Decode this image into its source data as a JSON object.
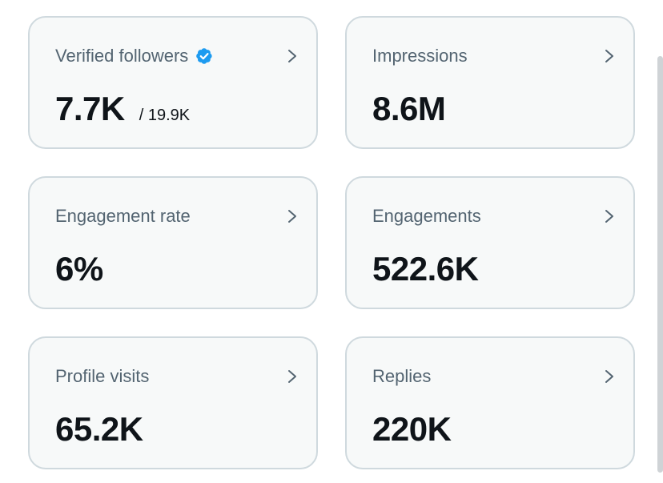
{
  "cards": [
    {
      "label": "Verified followers",
      "value": "7.7K",
      "subvalue": "/ 19.9K",
      "verified_icon": "verified-badge-icon"
    },
    {
      "label": "Impressions",
      "value": "8.6M"
    },
    {
      "label": "Engagement rate",
      "value": "6%"
    },
    {
      "label": "Engagements",
      "value": "522.6K"
    },
    {
      "label": "Profile visits",
      "value": "65.2K"
    },
    {
      "label": "Replies",
      "value": "220K"
    }
  ],
  "colors": {
    "card_background": "#f7f9f9",
    "card_border": "#cfd9de",
    "label_text": "#536471",
    "value_text": "#0f1419",
    "verified_badge": "#1d9bf0",
    "chevron": "#536471"
  },
  "icons": {
    "chevron": "chevron-right-icon",
    "verified": "verified-badge-icon"
  }
}
